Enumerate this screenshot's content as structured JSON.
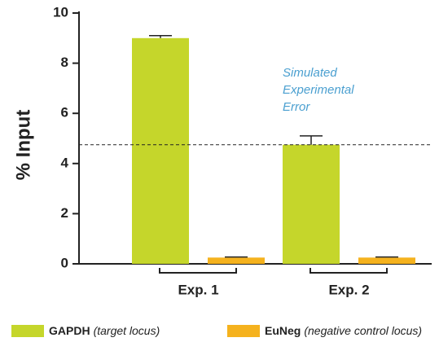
{
  "chart_data": {
    "type": "bar",
    "y_label": "% Input",
    "categories": [
      "Exp. 1",
      "Exp. 2"
    ],
    "series": [
      {
        "name": "GAPDH",
        "description": "(target locus)",
        "color": "#c5d62b",
        "values": [
          9.0,
          4.75
        ],
        "errors": [
          0.1,
          0.35
        ]
      },
      {
        "name": "EuNeg",
        "description": "(negative control locus)",
        "color": "#f5b21e",
        "values": [
          0.25,
          0.25
        ],
        "errors": [
          0.02,
          0.02
        ]
      }
    ],
    "reference_line": 4.75,
    "annotation": [
      "Simulated",
      "Experimental",
      "Error"
    ],
    "ylim": [
      0,
      10
    ],
    "yticks": [
      0,
      2,
      4,
      6,
      8,
      10
    ]
  }
}
